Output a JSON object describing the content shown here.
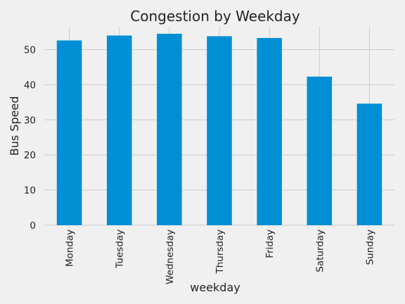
{
  "chart_data": {
    "type": "bar",
    "title": "Congestion by Weekday",
    "xlabel": "weekday",
    "ylabel": "Bus Speed",
    "categories": [
      "Monday",
      "Tuesday",
      "Wednesday",
      "Thursday",
      "Friday",
      "Saturday",
      "Sunday"
    ],
    "values": [
      52.6,
      54.0,
      54.5,
      53.8,
      53.3,
      42.3,
      34.6
    ],
    "ylim": [
      0,
      56.5
    ],
    "yticks": [
      0,
      10,
      20,
      30,
      40,
      50
    ],
    "grid": true,
    "bar_color": "#008fd5",
    "background_color": "#f0f0f0",
    "grid_color": "#cbcbcb"
  }
}
